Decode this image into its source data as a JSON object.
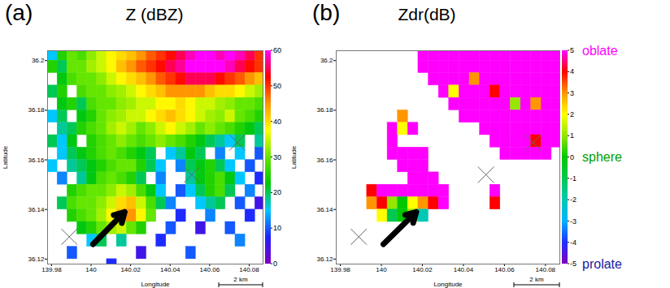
{
  "chart_data": [
    {
      "type": "heatmap",
      "panel_label": "(a)",
      "title": "Z (dBZ)",
      "xlabel": "Longitude",
      "ylabel": "Latitude",
      "xlim": [
        139.978,
        140.087
      ],
      "ylim": [
        36.118,
        36.204
      ],
      "xticks": [
        139.98,
        140,
        140.02,
        140.04,
        140.06,
        140.08
      ],
      "yticks": [
        36.12,
        36.14,
        36.16,
        36.18,
        36.2
      ],
      "grid": false,
      "x": [
        139.978,
        139.983,
        139.988,
        139.993,
        139.998,
        140.003,
        140.008,
        140.013,
        140.018,
        140.023,
        140.028,
        140.033,
        140.038,
        140.043,
        140.048,
        140.053,
        140.058,
        140.063,
        140.068,
        140.073,
        140.078,
        140.083
      ],
      "y": [
        36.2,
        36.195,
        36.19,
        36.185,
        36.18,
        36.175,
        36.17,
        36.165,
        36.16,
        36.155,
        36.15,
        36.145,
        36.14,
        36.135,
        36.13,
        36.125,
        36.12,
        36.115
      ],
      "cell_size": [
        0.005,
        0.005
      ],
      "values": [
        [
          15,
          25,
          30,
          28,
          32,
          35,
          38,
          40,
          42,
          45,
          48,
          50,
          52,
          55,
          58,
          60,
          60,
          58,
          60,
          58,
          55,
          50
        ],
        [
          25,
          20,
          30,
          30,
          33,
          35,
          38,
          42,
          45,
          48,
          50,
          52,
          55,
          57,
          60,
          60,
          60,
          60,
          58,
          55,
          52,
          50
        ],
        [
          null,
          22,
          28,
          30,
          30,
          32,
          35,
          38,
          40,
          42,
          45,
          48,
          50,
          52,
          55,
          55,
          55,
          52,
          50,
          48,
          45,
          42
        ],
        [
          20,
          25,
          null,
          28,
          30,
          30,
          32,
          33,
          35,
          38,
          40,
          42,
          45,
          45,
          45,
          45,
          42,
          40,
          40,
          38,
          35,
          33
        ],
        [
          null,
          22,
          25,
          20,
          28,
          30,
          30,
          32,
          33,
          35,
          35,
          38,
          38,
          40,
          38,
          35,
          35,
          33,
          32,
          30,
          30,
          28
        ],
        [
          15,
          20,
          null,
          22,
          25,
          30,
          32,
          33,
          35,
          35,
          38,
          40,
          42,
          40,
          38,
          35,
          33,
          32,
          35,
          30,
          28,
          25
        ],
        [
          null,
          18,
          20,
          25,
          28,
          30,
          33,
          35,
          33,
          30,
          32,
          35,
          38,
          35,
          33,
          30,
          32,
          30,
          28,
          25,
          22,
          20
        ],
        [
          20,
          15,
          22,
          null,
          25,
          28,
          30,
          32,
          30,
          28,
          30,
          32,
          30,
          28,
          25,
          22,
          20,
          18,
          15,
          20,
          null,
          18
        ],
        [
          null,
          15,
          20,
          22,
          25,
          28,
          30,
          28,
          25,
          22,
          20,
          null,
          15,
          18,
          22,
          20,
          null,
          12,
          null,
          15,
          null,
          10
        ],
        [
          15,
          null,
          18,
          20,
          22,
          25,
          28,
          30,
          30,
          25,
          20,
          15,
          null,
          12,
          20,
          22,
          25,
          20,
          15,
          null,
          10,
          null
        ],
        [
          null,
          12,
          null,
          18,
          22,
          28,
          30,
          28,
          25,
          20,
          null,
          12,
          null,
          null,
          18,
          22,
          25,
          28,
          22,
          15,
          null,
          8
        ],
        [
          null,
          null,
          25,
          28,
          30,
          30,
          32,
          35,
          33,
          28,
          22,
          15,
          null,
          10,
          15,
          20,
          25,
          28,
          20,
          null,
          12,
          null
        ],
        [
          null,
          20,
          28,
          30,
          30,
          32,
          35,
          40,
          42,
          35,
          28,
          20,
          12,
          null,
          null,
          15,
          18,
          20,
          null,
          10,
          null,
          5
        ],
        [
          null,
          null,
          25,
          28,
          30,
          33,
          38,
          42,
          45,
          38,
          30,
          null,
          null,
          8,
          null,
          null,
          12,
          null,
          null,
          null,
          8,
          null
        ],
        [
          null,
          null,
          null,
          22,
          25,
          30,
          33,
          35,
          30,
          25,
          null,
          null,
          10,
          null,
          null,
          5,
          null,
          null,
          10,
          null,
          null,
          null
        ],
        [
          null,
          null,
          null,
          null,
          15,
          20,
          null,
          18,
          null,
          null,
          null,
          8,
          null,
          null,
          null,
          null,
          null,
          null,
          null,
          12,
          null,
          null
        ],
        [
          null,
          null,
          10,
          null,
          null,
          null,
          null,
          null,
          null,
          5,
          null,
          null,
          null,
          null,
          10,
          null,
          null,
          null,
          null,
          null,
          null,
          null
        ],
        [
          null,
          null,
          null,
          null,
          null,
          null,
          8,
          null,
          null,
          null,
          null,
          null,
          null,
          null,
          null,
          null,
          null,
          null,
          null,
          null,
          null,
          null
        ]
      ],
      "colorbar": {
        "range": [
          0,
          60
        ],
        "ticks": [
          0,
          10,
          20,
          30,
          40,
          50,
          60
        ],
        "colors": [
          "#8000c0",
          "#2020ff",
          "#00c8ff",
          "#00c800",
          "#64e600",
          "#ffff00",
          "#ff9600",
          "#ff0000",
          "#ff00ff"
        ]
      },
      "markers": [
        {
          "x": 139.989,
          "y": 36.129
        },
        {
          "x": 140.051,
          "y": 36.154
        },
        {
          "x": 140.074,
          "y": 36.167
        }
      ],
      "marker": "times",
      "arrow": {
        "x1": 140.001,
        "y1": 36.126,
        "x2": 140.017,
        "y2": 36.139
      },
      "scale_bar": {
        "length": 0.0222,
        "label": "2 km"
      }
    },
    {
      "type": "heatmap",
      "panel_label": "(b)",
      "title": "Zdr(dB)",
      "xlabel": "Longitude",
      "ylabel": "Latitude",
      "xlim": [
        139.978,
        140.087
      ],
      "ylim": [
        36.118,
        36.204
      ],
      "xticks": [
        139.98,
        140,
        140.02,
        140.04,
        140.06,
        140.08
      ],
      "yticks": [
        36.12,
        36.14,
        36.16,
        36.18,
        36.2
      ],
      "grid": false,
      "x": [
        139.978,
        139.983,
        139.988,
        139.993,
        139.998,
        140.003,
        140.008,
        140.013,
        140.018,
        140.023,
        140.028,
        140.033,
        140.038,
        140.043,
        140.048,
        140.053,
        140.058,
        140.063,
        140.068,
        140.073,
        140.078,
        140.083
      ],
      "y": [
        36.2,
        36.195,
        36.19,
        36.185,
        36.18,
        36.175,
        36.17,
        36.165,
        36.16,
        36.155,
        36.15,
        36.145,
        36.14,
        36.135,
        36.13,
        36.125,
        36.12,
        36.115
      ],
      "cell_size": [
        0.005,
        0.005
      ],
      "values": [
        [
          null,
          null,
          null,
          null,
          null,
          null,
          null,
          null,
          5,
          5,
          5,
          5,
          5,
          5,
          5,
          5,
          5,
          5,
          5,
          5,
          5,
          5
        ],
        [
          null,
          null,
          null,
          null,
          null,
          null,
          null,
          null,
          5,
          5,
          5,
          5,
          5,
          5,
          5,
          5,
          5,
          5,
          5,
          5,
          5,
          5
        ],
        [
          null,
          null,
          null,
          null,
          null,
          null,
          null,
          null,
          null,
          5,
          5,
          5,
          5,
          3,
          5,
          5,
          5,
          5,
          5,
          5,
          5,
          5
        ],
        [
          null,
          null,
          null,
          null,
          null,
          null,
          null,
          null,
          null,
          null,
          5,
          2,
          5,
          5,
          5,
          4,
          5,
          5,
          5,
          5,
          5,
          5
        ],
        [
          null,
          null,
          null,
          null,
          null,
          null,
          null,
          null,
          null,
          null,
          null,
          5,
          5,
          5,
          5,
          5,
          5,
          1,
          5,
          3,
          5,
          5
        ],
        [
          null,
          null,
          null,
          null,
          null,
          null,
          3,
          null,
          null,
          null,
          null,
          null,
          5,
          5,
          5,
          5,
          5,
          5,
          5,
          5,
          5,
          5
        ],
        [
          null,
          null,
          null,
          null,
          null,
          5,
          2,
          5,
          null,
          null,
          null,
          null,
          null,
          null,
          5,
          5,
          5,
          5,
          5,
          5,
          5,
          5
        ],
        [
          null,
          null,
          null,
          null,
          null,
          5,
          null,
          null,
          null,
          null,
          null,
          null,
          null,
          null,
          null,
          5,
          5,
          5,
          5,
          4,
          5,
          5
        ],
        [
          null,
          null,
          null,
          null,
          null,
          5,
          5,
          5,
          5,
          null,
          null,
          null,
          null,
          null,
          null,
          null,
          5,
          5,
          5,
          5,
          5,
          null
        ],
        [
          null,
          null,
          null,
          null,
          null,
          null,
          5,
          5,
          5,
          null,
          null,
          null,
          null,
          null,
          null,
          null,
          null,
          null,
          null,
          null,
          null,
          null
        ],
        [
          null,
          null,
          null,
          null,
          null,
          null,
          null,
          5,
          5,
          5,
          null,
          null,
          null,
          null,
          null,
          null,
          null,
          null,
          null,
          null,
          null,
          null
        ],
        [
          null,
          null,
          null,
          4,
          5,
          5,
          5,
          5,
          5,
          5,
          5,
          null,
          null,
          null,
          null,
          5,
          null,
          null,
          null,
          null,
          null,
          null
        ],
        [
          null,
          null,
          null,
          3,
          4,
          1,
          0,
          2,
          3,
          4,
          5,
          null,
          null,
          null,
          null,
          4,
          null,
          null,
          null,
          null,
          null,
          null
        ],
        [
          null,
          null,
          null,
          null,
          2,
          -1,
          0,
          1,
          -2,
          null,
          null,
          null,
          null,
          null,
          null,
          null,
          null,
          null,
          null,
          null,
          null,
          null
        ],
        [
          null,
          null,
          null,
          null,
          null,
          null,
          null,
          null,
          null,
          null,
          null,
          null,
          null,
          null,
          null,
          null,
          null,
          null,
          null,
          null,
          null,
          null
        ],
        [
          null,
          null,
          null,
          null,
          null,
          null,
          null,
          null,
          null,
          null,
          null,
          null,
          null,
          null,
          null,
          null,
          null,
          null,
          null,
          null,
          null,
          null
        ],
        [
          null,
          null,
          null,
          null,
          null,
          null,
          null,
          null,
          null,
          null,
          null,
          null,
          null,
          null,
          null,
          null,
          null,
          null,
          null,
          null,
          null,
          null
        ],
        [
          null,
          null,
          null,
          null,
          null,
          null,
          null,
          null,
          null,
          null,
          null,
          null,
          null,
          null,
          null,
          null,
          null,
          null,
          null,
          null,
          null,
          null
        ]
      ],
      "colorbar": {
        "range": [
          -5,
          5
        ],
        "ticks": [
          5,
          4,
          3,
          2,
          1,
          0,
          -1,
          -2,
          -3,
          -4,
          -5
        ],
        "colors": [
          "#8000c0",
          "#2030ff",
          "#00b4ff",
          "#00c8b4",
          "#00c850",
          "#00c800",
          "#96e600",
          "#ffff00",
          "#ff9600",
          "#ff0000",
          "#ff00ff"
        ],
        "annotations": [
          {
            "value": 5,
            "label": "oblate",
            "color": "#ff00ff"
          },
          {
            "value": 0,
            "label": "sphere",
            "color": "#00a000"
          },
          {
            "value": -5,
            "label": "prolate",
            "color": "#1a1aa0"
          }
        ]
      },
      "markers": [
        {
          "x": 139.989,
          "y": 36.129
        },
        {
          "x": 140.051,
          "y": 36.154
        },
        {
          "x": 140.074,
          "y": 36.167
        }
      ],
      "marker": "times",
      "arrow": {
        "x1": 140.001,
        "y1": 36.126,
        "x2": 140.017,
        "y2": 36.139
      },
      "scale_bar": {
        "length": 0.0222,
        "label": "2 km"
      }
    }
  ]
}
